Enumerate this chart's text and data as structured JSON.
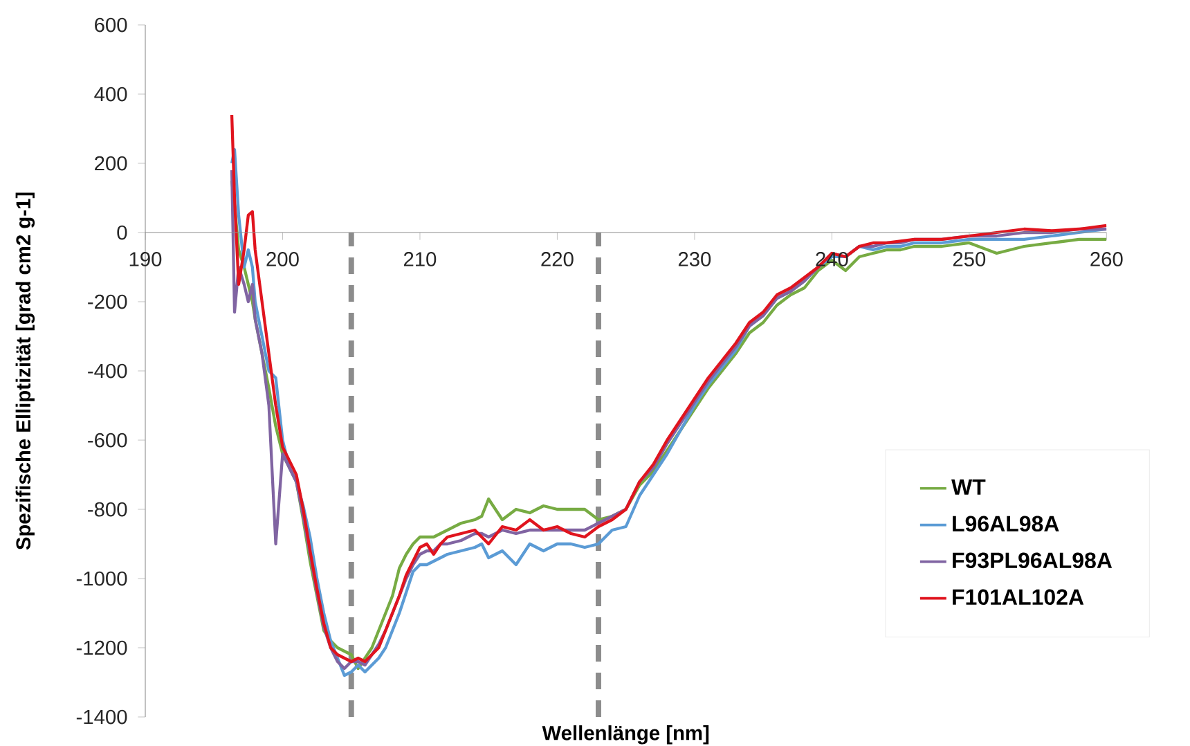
{
  "chart_data": {
    "type": "line",
    "xlabel": "Wellenlänge [nm]",
    "ylabel": "Spezifische Elliptizität [grad cm2 g-1]",
    "x": [
      196.3,
      196.5,
      196.8,
      197.2,
      197.5,
      197.8,
      198,
      198.5,
      199,
      199.5,
      200,
      200.5,
      201,
      201.5,
      202,
      202.5,
      203,
      203.5,
      204,
      204.5,
      205,
      205.5,
      206,
      206.5,
      207,
      207.5,
      208,
      208.5,
      209,
      209.5,
      210,
      210.5,
      211,
      211.5,
      212,
      213,
      214,
      214.5,
      215,
      216,
      217,
      218,
      219,
      220,
      221,
      222,
      223,
      224,
      225,
      226,
      227,
      228,
      229,
      230,
      231,
      232,
      233,
      234,
      235,
      236,
      237,
      238,
      239,
      240,
      241,
      242,
      243,
      244,
      245,
      246,
      248,
      250,
      252,
      254,
      256,
      258,
      260
    ],
    "series": [
      {
        "name": "WT",
        "color": "#77ab43",
        "values": [
          150,
          80,
          -50,
          -100,
          -150,
          -200,
          -250,
          -350,
          -450,
          -560,
          -640,
          -680,
          -720,
          -830,
          -950,
          -1050,
          -1150,
          -1180,
          -1200,
          -1210,
          -1220,
          -1260,
          -1230,
          -1200,
          -1150,
          -1100,
          -1050,
          -970,
          -930,
          -900,
          -880,
          -880,
          -880,
          -870,
          -860,
          -840,
          -830,
          -820,
          -770,
          -830,
          -800,
          -810,
          -790,
          -800,
          -800,
          -800,
          -830,
          -820,
          -800,
          -730,
          -690,
          -630,
          -570,
          -510,
          -450,
          -400,
          -350,
          -290,
          -260,
          -210,
          -180,
          -160,
          -110,
          -80,
          -110,
          -70,
          -60,
          -50,
          -50,
          -40,
          -40,
          -30,
          -60,
          -40,
          -30,
          -20,
          -20
        ]
      },
      {
        "name": "L96AL98A",
        "color": "#5b9bd5",
        "values": [
          200,
          240,
          50,
          -100,
          -50,
          -100,
          -200,
          -300,
          -400,
          -420,
          -600,
          -680,
          -720,
          -790,
          -880,
          -1000,
          -1100,
          -1180,
          -1230,
          -1280,
          -1270,
          -1250,
          -1270,
          -1250,
          -1230,
          -1200,
          -1150,
          -1100,
          -1040,
          -980,
          -960,
          -960,
          -950,
          -940,
          -930,
          -920,
          -910,
          -900,
          -940,
          -920,
          -960,
          -900,
          -920,
          -900,
          -900,
          -910,
          -900,
          -860,
          -850,
          -760,
          -700,
          -640,
          -570,
          -500,
          -440,
          -390,
          -340,
          -270,
          -240,
          -190,
          -170,
          -140,
          -100,
          -70,
          -70,
          -40,
          -50,
          -40,
          -40,
          -30,
          -30,
          -20,
          -20,
          -20,
          -10,
          0,
          10
        ]
      },
      {
        "name": "F93PL96AL98A",
        "color": "#8064a2",
        "values": [
          180,
          -230,
          -100,
          -150,
          -200,
          -150,
          -250,
          -350,
          -500,
          -900,
          -640,
          -680,
          -720,
          -820,
          -930,
          -1040,
          -1140,
          -1200,
          -1240,
          -1260,
          -1240,
          -1240,
          -1250,
          -1220,
          -1190,
          -1150,
          -1100,
          -1050,
          -1000,
          -960,
          -930,
          -920,
          -920,
          -900,
          -900,
          -890,
          -870,
          -870,
          -880,
          -860,
          -870,
          -860,
          -860,
          -860,
          -860,
          -860,
          -840,
          -820,
          -800,
          -720,
          -680,
          -610,
          -550,
          -490,
          -430,
          -380,
          -330,
          -270,
          -240,
          -190,
          -170,
          -140,
          -100,
          -60,
          -70,
          -40,
          -40,
          -30,
          -30,
          -20,
          -20,
          -10,
          -10,
          0,
          0,
          10,
          10
        ]
      },
      {
        "name": "F101AL102A",
        "color": "#e0141e",
        "values": [
          340,
          100,
          -150,
          -50,
          50,
          60,
          -50,
          -200,
          -350,
          -500,
          -620,
          -660,
          -700,
          -800,
          -920,
          -1030,
          -1130,
          -1200,
          -1220,
          -1230,
          -1240,
          -1230,
          -1240,
          -1220,
          -1200,
          -1150,
          -1100,
          -1050,
          -990,
          -950,
          -910,
          -900,
          -930,
          -900,
          -880,
          -870,
          -860,
          -880,
          -900,
          -850,
          -860,
          -830,
          -860,
          -850,
          -870,
          -880,
          -850,
          -830,
          -800,
          -720,
          -670,
          -600,
          -540,
          -480,
          -420,
          -370,
          -320,
          -260,
          -230,
          -180,
          -160,
          -130,
          -100,
          -60,
          -70,
          -40,
          -30,
          -30,
          -25,
          -20,
          -20,
          -10,
          0,
          10,
          5,
          10,
          20
        ]
      }
    ],
    "xlim": [
      190,
      260
    ],
    "xticks": [
      190,
      200,
      210,
      220,
      230,
      240,
      250,
      260
    ],
    "ylim": [
      -1400,
      600
    ],
    "yticks": [
      -1400,
      -1200,
      -1000,
      -800,
      -600,
      -400,
      -200,
      0,
      200,
      400,
      600
    ],
    "ref_lines": [
      {
        "axis": "x",
        "value": 205,
        "color": "#8c8c8c",
        "line_style": "dashed"
      },
      {
        "axis": "x",
        "value": 223,
        "color": "#8c8c8c",
        "line_style": "dashed"
      }
    ],
    "grid": false,
    "legend": "bottom right",
    "marker": "none",
    "line_style": "solid"
  }
}
